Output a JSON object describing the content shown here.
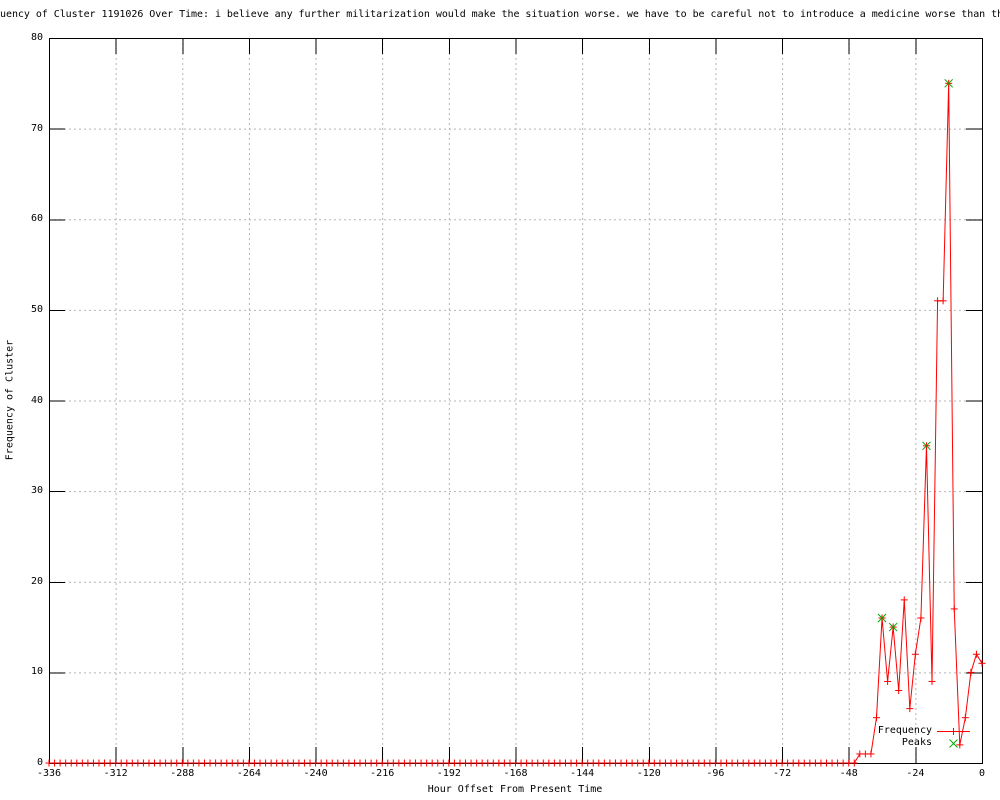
{
  "chart_data": {
    "type": "line",
    "title": "uency of Cluster 1191026 Over Time: i believe any further militarization would make the situation worse. we have to be careful not to introduce a medicine worse than th",
    "xlabel": "Hour Offset From Present Time",
    "ylabel": "Frequency of Cluster",
    "xlim": [
      -336,
      0
    ],
    "ylim": [
      0,
      80
    ],
    "x_ticks": [
      -336,
      -312,
      -288,
      -264,
      -240,
      -216,
      -192,
      -168,
      -144,
      -120,
      -96,
      -72,
      -48,
      -24,
      0
    ],
    "y_ticks": [
      0,
      10,
      20,
      30,
      40,
      50,
      60,
      70,
      80
    ],
    "grid": true,
    "colors": {
      "frequency": "#ff0000",
      "peaks": "#00aa00",
      "grid": "#b4b4b4",
      "axis": "#000000",
      "background": "#ffffff"
    },
    "legend": {
      "position": "inside-bottom-right",
      "entries": [
        {
          "label": "Frequency",
          "marker": "line-plus",
          "color": "#ff0000"
        },
        {
          "label": "Peaks",
          "marker": "cross",
          "color": "#00aa00"
        }
      ]
    },
    "series": [
      {
        "name": "Frequency",
        "color": "#ff0000",
        "marker": "plus",
        "x_step_hours": 2,
        "baseline": {
          "x_from": -336,
          "x_to": -48,
          "value": 0
        },
        "points": [
          [
            -46,
            0
          ],
          [
            -44,
            1
          ],
          [
            -42,
            1
          ],
          [
            -40,
            1
          ],
          [
            -38,
            5
          ],
          [
            -36,
            16
          ],
          [
            -34,
            9
          ],
          [
            -32,
            15
          ],
          [
            -30,
            8
          ],
          [
            -28,
            18
          ],
          [
            -26,
            6
          ],
          [
            -24,
            12
          ],
          [
            -22,
            16
          ],
          [
            -20,
            35
          ],
          [
            -18,
            9
          ],
          [
            -16,
            51
          ],
          [
            -14,
            51
          ],
          [
            -12,
            75
          ],
          [
            -10,
            17
          ],
          [
            -8,
            2
          ],
          [
            -6,
            5
          ],
          [
            -4,
            10
          ],
          [
            -2,
            12
          ],
          [
            0,
            11
          ]
        ]
      },
      {
        "name": "Peaks",
        "color": "#00aa00",
        "marker": "cross",
        "points": [
          [
            -36,
            16
          ],
          [
            -32,
            15
          ],
          [
            -20,
            35
          ],
          [
            -12,
            75
          ]
        ]
      }
    ]
  }
}
